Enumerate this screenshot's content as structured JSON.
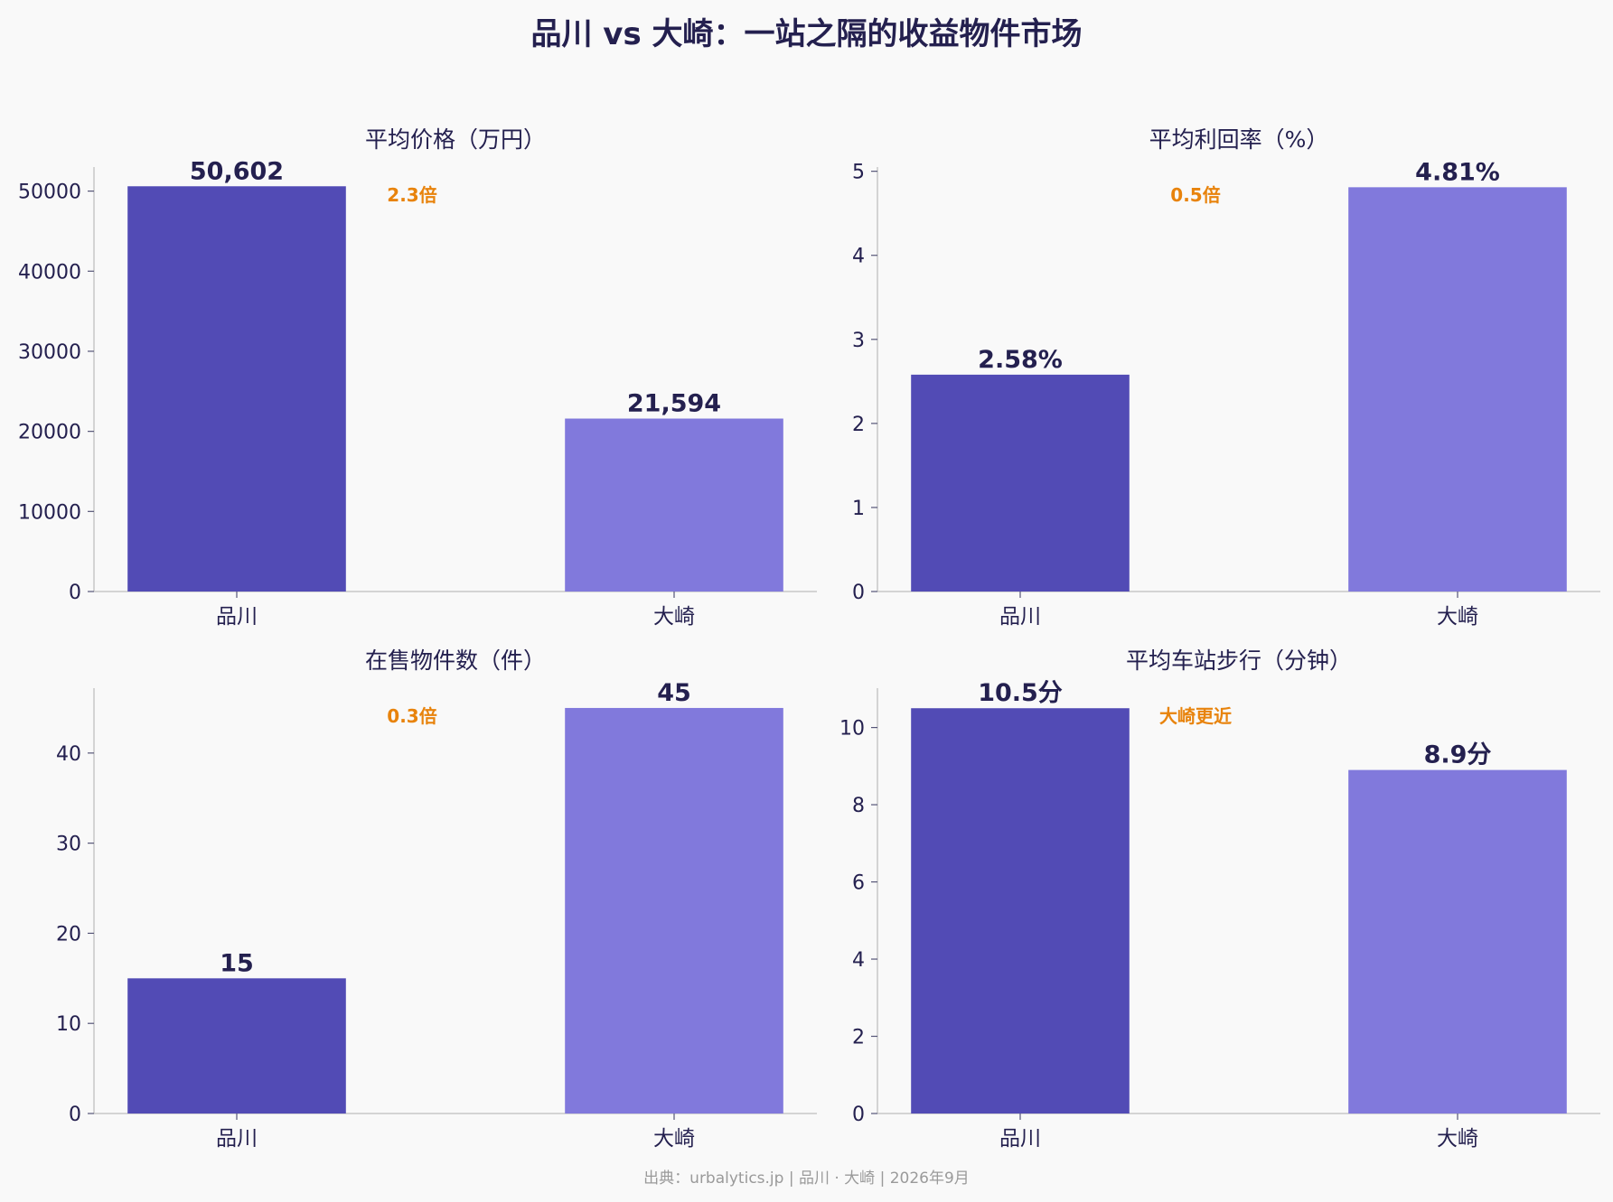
{
  "title": "品川 vs 大崎：一站之隔的收益物件市场",
  "source": "出典：urbalytics.jp | 品川 · 大崎 | 2026年9月",
  "colors": {
    "shinagawa": "#524bb5",
    "osaki": "#8179dc",
    "annotation": "#e8830c",
    "text": "#24204f",
    "background": "#f9f9f9"
  },
  "chart_data": [
    {
      "type": "bar",
      "title": "平均价格（万円）",
      "categories": [
        "品川",
        "大崎"
      ],
      "values": [
        50602,
        21594
      ],
      "value_labels": [
        "50,602",
        "21,594"
      ],
      "ylim": [
        0,
        53000
      ],
      "yticks": [
        0,
        10000,
        20000,
        30000,
        40000,
        50000
      ],
      "annotation": "2.3倍"
    },
    {
      "type": "bar",
      "title": "平均利回率（%）",
      "categories": [
        "品川",
        "大崎"
      ],
      "values": [
        2.58,
        4.81
      ],
      "value_labels": [
        "2.58%",
        "4.81%"
      ],
      "ylim": [
        0,
        5.05
      ],
      "yticks": [
        0,
        1,
        2,
        3,
        4,
        5
      ],
      "annotation": "0.5倍"
    },
    {
      "type": "bar",
      "title": "在售物件数（件）",
      "categories": [
        "品川",
        "大崎"
      ],
      "values": [
        15,
        45
      ],
      "value_labels": [
        "15",
        "45"
      ],
      "ylim": [
        0,
        47.2
      ],
      "yticks": [
        0,
        10,
        20,
        30,
        40
      ],
      "annotation": "0.3倍"
    },
    {
      "type": "bar",
      "title": "平均车站步行（分钟）",
      "categories": [
        "品川",
        "大崎"
      ],
      "values": [
        10.5,
        8.9
      ],
      "value_labels": [
        "10.5分",
        "8.9分"
      ],
      "ylim": [
        0,
        11.02
      ],
      "yticks": [
        0,
        2,
        4,
        6,
        8,
        10
      ],
      "annotation": "大崎更近"
    }
  ]
}
